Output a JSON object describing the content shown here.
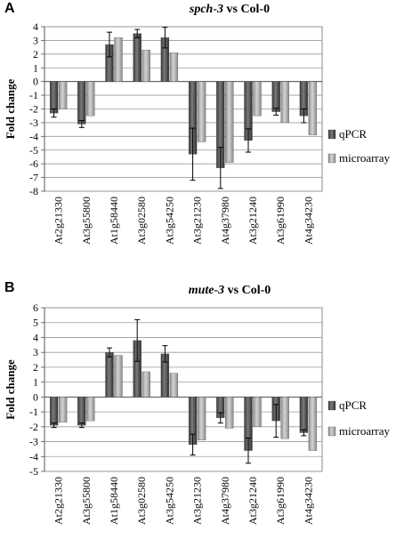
{
  "chart_data": [
    {
      "panel": "A",
      "type": "bar",
      "title_genotype": "spch-3",
      "title_rest": " vs Col-0",
      "ylabel": "Fold change",
      "ylim": [
        -8,
        4
      ],
      "yticks": [
        -8,
        -7,
        -6,
        -5,
        -4,
        -3,
        -2,
        -1,
        0,
        1,
        2,
        3,
        4
      ],
      "grid": true,
      "legend_position": "right",
      "categories": [
        "At2g21330",
        "At3g55800",
        "At1g58440",
        "At3g02580",
        "At3g54250",
        "At3g21230",
        "At4g37980",
        "At3g21240",
        "At3g61990",
        "At4g34230"
      ],
      "series": [
        {
          "name": "qPCR",
          "values": [
            -2.3,
            -3.1,
            2.7,
            3.5,
            3.2,
            -5.3,
            -6.3,
            -4.3,
            -2.2,
            -2.5
          ],
          "error": [
            0.3,
            0.25,
            0.9,
            0.3,
            0.75,
            1.9,
            1.5,
            0.85,
            0.25,
            0.5
          ]
        },
        {
          "name": "microarray",
          "values": [
            -2.0,
            -2.5,
            3.2,
            2.3,
            2.1,
            -4.4,
            -5.9,
            -2.5,
            -3.0,
            -3.9
          ],
          "error": []
        }
      ]
    },
    {
      "panel": "B",
      "type": "bar",
      "title_genotype": "mute-3",
      "title_rest": " vs Col-0",
      "ylabel": "Fold change",
      "ylim": [
        -5,
        6
      ],
      "yticks": [
        -5,
        -4,
        -3,
        -2,
        -1,
        0,
        1,
        2,
        3,
        4,
        5,
        6
      ],
      "grid": true,
      "legend_position": "right",
      "categories": [
        "At2g21330",
        "At3g55800",
        "At1g58440",
        "At3g02580",
        "At3g54250",
        "At3g21230",
        "At4g37980",
        "At3g21240",
        "At3g61990",
        "At4g34230"
      ],
      "series": [
        {
          "name": "qPCR",
          "values": [
            -1.9,
            -1.9,
            3.0,
            3.8,
            2.9,
            -3.2,
            -1.4,
            -3.6,
            -1.6,
            -2.4
          ],
          "error": [
            0.15,
            0.15,
            0.3,
            1.4,
            0.55,
            0.7,
            0.35,
            0.85,
            1.1,
            0.2
          ]
        },
        {
          "name": "microarray",
          "values": [
            -1.7,
            -1.6,
            2.8,
            1.7,
            1.6,
            -2.9,
            -2.1,
            -2.0,
            -2.8,
            -3.6
          ],
          "error": []
        }
      ]
    }
  ]
}
